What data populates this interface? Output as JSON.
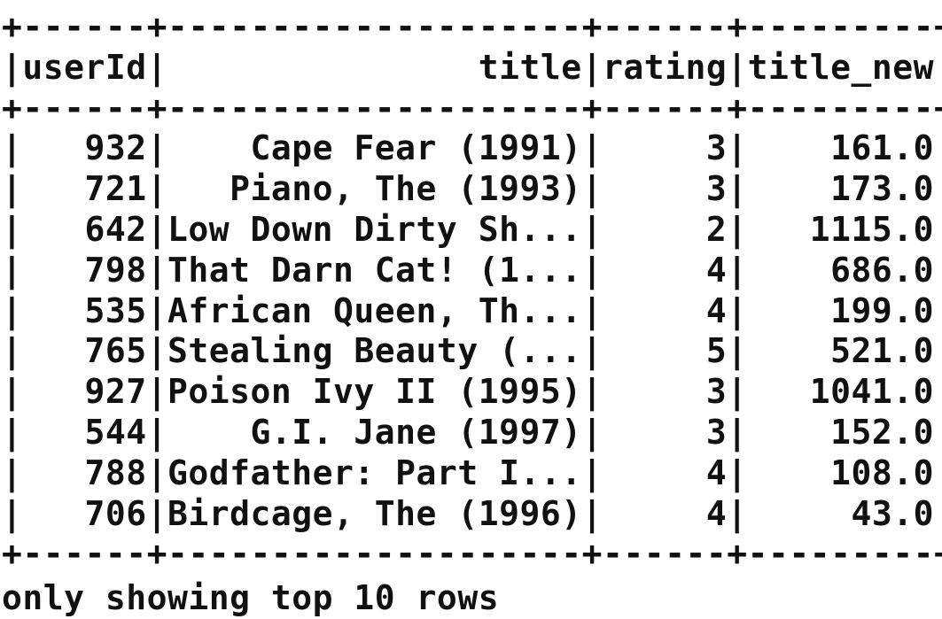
{
  "table": {
    "columns": [
      {
        "name": "userId",
        "width": 6
      },
      {
        "name": "title",
        "width": 20
      },
      {
        "name": "rating",
        "width": 6
      },
      {
        "name": "title_new",
        "width": 9
      }
    ],
    "rows": [
      [
        "932",
        "Cape Fear (1991)",
        "3",
        "161.0"
      ],
      [
        "721",
        "Piano, The (1993)",
        "3",
        "173.0"
      ],
      [
        "642",
        "Low Down Dirty Sh...",
        "2",
        "1115.0"
      ],
      [
        "798",
        "That Darn Cat! (1...",
        "4",
        "686.0"
      ],
      [
        "535",
        "African Queen, Th...",
        "4",
        "199.0"
      ],
      [
        "765",
        "Stealing Beauty (...",
        "5",
        "521.0"
      ],
      [
        "927",
        "Poison Ivy II (1995)",
        "3",
        "1041.0"
      ],
      [
        "544",
        "G.I. Jane (1997)",
        "3",
        "152.0"
      ],
      [
        "788",
        "Godfather: Part I...",
        "4",
        "108.0"
      ],
      [
        "706",
        "Birdcage, The (1996)",
        "4",
        "43.0"
      ]
    ]
  },
  "footer_text": "only showing top 10 rows"
}
